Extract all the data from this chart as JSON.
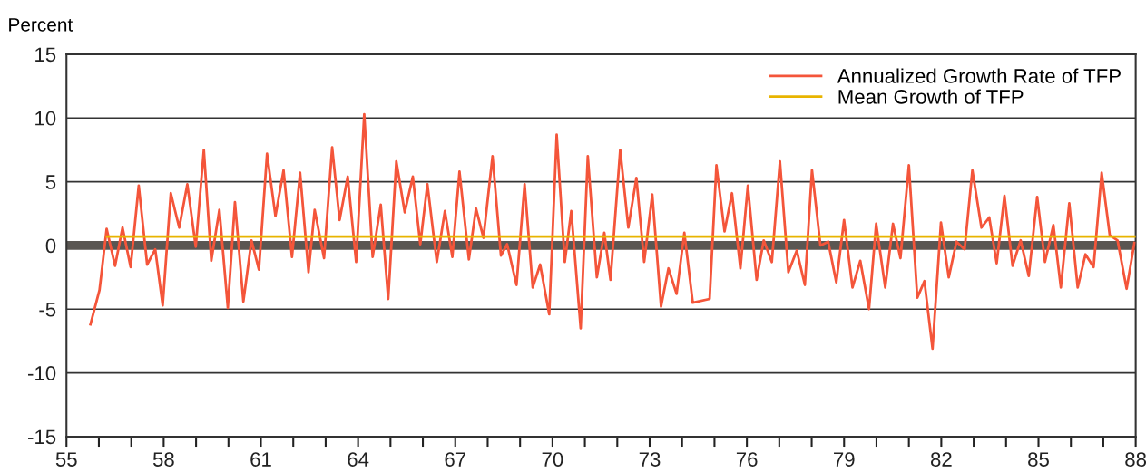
{
  "chart_data": {
    "type": "line",
    "ylabel": "Percent",
    "xlim": [
      55,
      88
    ],
    "ylim": [
      -15,
      15
    ],
    "yticks": [
      -15,
      -10,
      -5,
      0,
      5,
      10,
      15
    ],
    "xticks": [
      55,
      {
        "value": 56,
        "label": null
      },
      {
        "value": 57,
        "label": null
      },
      58,
      {
        "value": 59,
        "label": null
      },
      {
        "value": 60,
        "label": null
      },
      61,
      {
        "value": 62,
        "label": null
      },
      {
        "value": 63,
        "label": null
      },
      64,
      {
        "value": 65,
        "label": null
      },
      {
        "value": 66,
        "label": null
      },
      67,
      {
        "value": 68,
        "label": null
      },
      {
        "value": 69,
        "label": null
      },
      70,
      {
        "value": 71,
        "label": null
      },
      {
        "value": 72,
        "label": null
      },
      73,
      {
        "value": 74,
        "label": null
      },
      {
        "value": 75,
        "label": null
      },
      76,
      {
        "value": 77,
        "label": null
      },
      {
        "value": 78,
        "label": null
      },
      79,
      {
        "value": 80,
        "label": null
      },
      {
        "value": 81,
        "label": null
      },
      82,
      {
        "value": 83,
        "label": null
      },
      {
        "value": 84,
        "label": null
      },
      85,
      {
        "value": 86,
        "label": null
      },
      {
        "value": 87,
        "label": null
      },
      88
    ],
    "grid": "y",
    "legend": "top right",
    "marker": "none",
    "line_style": "solid",
    "ref_lines": [
      {
        "axis": "y",
        "value": 0,
        "label": null,
        "color": "#5a5652"
      }
    ],
    "series": [
      {
        "name": "Annualized Growth Rate of TFP",
        "color": "#f4553a",
        "x": [
          55.74,
          56.02,
          56.24,
          56.5,
          56.73,
          56.98,
          57.23,
          57.49,
          57.74,
          57.97,
          58.22,
          58.48,
          58.73,
          58.99,
          59.24,
          59.47,
          59.72,
          59.98,
          60.2,
          60.46,
          60.71,
          60.94,
          61.19,
          61.45,
          61.7,
          61.96,
          62.21,
          62.47,
          62.66,
          62.95,
          63.2,
          63.43,
          63.68,
          63.94,
          64.19,
          64.45,
          64.7,
          64.93,
          65.18,
          65.44,
          65.69,
          65.92,
          66.14,
          66.43,
          66.68,
          66.91,
          67.13,
          67.42,
          67.64,
          67.87,
          68.15,
          68.41,
          68.6,
          68.89,
          69.14,
          69.39,
          69.62,
          69.9,
          70.13,
          70.38,
          70.58,
          70.87,
          71.09,
          71.37,
          71.6,
          71.79,
          72.09,
          72.34,
          72.59,
          72.83,
          73.08,
          73.35,
          73.58,
          73.83,
          74.07,
          74.33,
          74.85,
          75.06,
          75.31,
          75.54,
          75.8,
          76.03,
          76.3,
          76.52,
          76.77,
          77.02,
          77.28,
          77.54,
          77.79,
          78.01,
          78.27,
          78.51,
          78.76,
          79.0,
          79.26,
          79.5,
          79.77,
          79.99,
          80.27,
          80.51,
          80.74,
          81.0,
          81.26,
          81.48,
          81.73,
          81.99,
          82.23,
          82.47,
          82.72,
          82.96,
          83.24,
          83.48,
          83.71,
          83.95,
          84.2,
          84.45,
          84.7,
          84.96,
          85.2,
          85.46,
          85.69,
          85.95,
          86.21,
          86.45,
          86.7,
          86.95,
          87.2,
          87.44,
          87.72,
          87.96
        ],
        "values": [
          -6.2,
          -3.5,
          1.3,
          -1.6,
          1.4,
          -1.7,
          4.7,
          -1.5,
          -0.3,
          -4.7,
          4.1,
          1.4,
          4.8,
          -0.1,
          7.5,
          -1.2,
          2.8,
          -4.9,
          3.4,
          -4.4,
          0.4,
          -1.9,
          7.2,
          2.3,
          5.9,
          -0.9,
          5.7,
          -2.1,
          2.8,
          -1.0,
          7.7,
          2.0,
          5.4,
          -1.3,
          10.3,
          -0.9,
          3.2,
          -4.2,
          6.6,
          2.6,
          5.4,
          0.1,
          4.8,
          -1.3,
          2.7,
          -0.9,
          5.8,
          -1.1,
          2.9,
          0.6,
          7.0,
          -0.8,
          0.1,
          -3.1,
          4.8,
          -3.3,
          -1.5,
          -5.4,
          8.7,
          -1.3,
          2.7,
          -6.5,
          7.0,
          -2.5,
          1.0,
          -2.7,
          7.5,
          1.4,
          5.3,
          -1.3,
          4.0,
          -4.8,
          -1.8,
          -3.8,
          1.0,
          -4.5,
          -4.2,
          6.3,
          1.1,
          4.1,
          -1.8,
          4.7,
          -2.7,
          0.4,
          -1.3,
          6.6,
          -2.1,
          -0.4,
          -3.1,
          5.9,
          0.0,
          0.3,
          -2.9,
          2.0,
          -3.3,
          -1.2,
          -5.0,
          1.7,
          -3.3,
          1.7,
          -1.0,
          6.3,
          -4.1,
          -2.8,
          -8.1,
          1.8,
          -2.5,
          0.3,
          -0.3,
          5.9,
          1.4,
          2.2,
          -1.4,
          3.9,
          -1.6,
          0.4,
          -2.4,
          3.8,
          -1.3,
          1.6,
          -3.3,
          3.3,
          -3.3,
          -0.7,
          -1.7,
          5.7,
          0.8,
          0.4,
          -3.4,
          0.2
        ]
      },
      {
        "name": "Mean Growth of TFP",
        "color": "#e8b400",
        "x": [
          56.25,
          88.0
        ],
        "values": [
          0.7,
          0.7
        ]
      }
    ]
  }
}
